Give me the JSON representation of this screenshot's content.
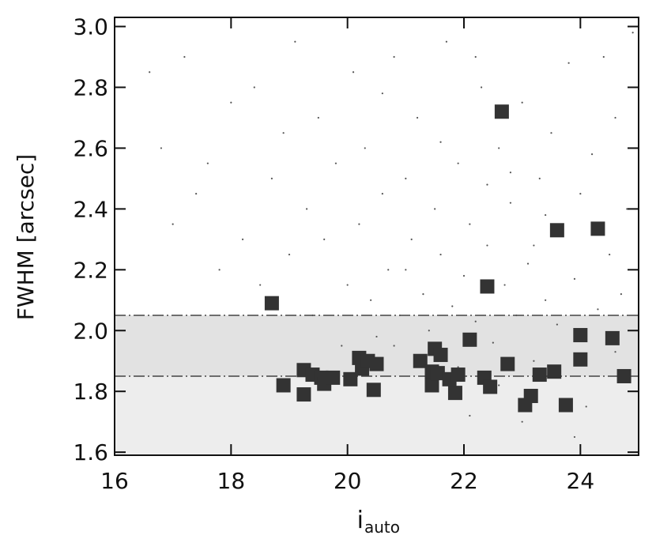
{
  "chart_data": {
    "type": "scatter",
    "y_label": "FWHM [arcsec]",
    "x_label": "i",
    "x_label_sub": "auto",
    "xlim": [
      16,
      25
    ],
    "ylim": [
      1.59,
      3.03
    ],
    "xticks": [
      16,
      18,
      20,
      22,
      24
    ],
    "yticks": [
      1.6,
      1.8,
      {
        "value": 2,
        "label": "2.0"
      },
      2.2,
      2.4,
      2.6,
      2.8,
      {
        "value": 3,
        "label": "3.0"
      }
    ],
    "bands": [
      {
        "to": 2.05,
        "color": "#ededed"
      },
      {
        "from": 1.85,
        "to": 2.05,
        "color": "#e2e2e2"
      }
    ],
    "hlines": [
      2.05,
      1.85
    ],
    "series": [
      {
        "marker": "dot",
        "color": "#555555",
        "x": [
          16.6,
          16.8,
          17.0,
          17.2,
          17.4,
          17.6,
          17.8,
          18.0,
          18.2,
          18.4,
          18.5,
          18.7,
          18.9,
          19.0,
          19.1,
          19.3,
          19.4,
          19.5,
          19.6,
          19.8,
          19.9,
          20.0,
          20.1,
          20.2,
          20.3,
          20.4,
          20.5,
          20.6,
          20.7,
          20.8,
          20.9,
          21.0,
          21.1,
          21.2,
          21.3,
          21.4,
          21.5,
          21.6,
          21.7,
          21.8,
          21.9,
          22.0,
          22.1,
          22.2,
          22.3,
          22.4,
          22.5,
          22.6,
          22.7,
          22.8,
          22.9,
          23.0,
          23.1,
          23.2,
          23.3,
          23.4,
          23.5,
          23.6,
          23.7,
          23.8,
          23.9,
          24.0,
          24.1,
          24.2,
          24.3,
          24.4,
          24.5,
          24.6,
          24.7,
          24.8,
          24.9,
          21.2,
          21.9,
          22.6,
          23.0,
          22.1,
          20.8,
          22.8,
          21.6,
          23.4,
          22.2,
          20.6,
          24.6,
          23.9,
          22.4,
          21.0,
          23.2
        ],
        "values": [
          2.85,
          2.6,
          2.35,
          2.9,
          2.45,
          2.55,
          2.2,
          2.75,
          2.3,
          2.8,
          2.15,
          2.5,
          2.65,
          2.25,
          2.95,
          2.4,
          2.05,
          2.7,
          2.3,
          2.55,
          1.95,
          2.15,
          2.85,
          2.35,
          2.6,
          2.1,
          1.98,
          2.45,
          2.2,
          2.9,
          2.05,
          2.5,
          2.3,
          2.7,
          2.12,
          2.0,
          2.4,
          2.25,
          2.95,
          2.08,
          2.55,
          2.18,
          2.35,
          2.03,
          2.8,
          2.28,
          1.96,
          2.6,
          2.15,
          2.42,
          2.05,
          2.75,
          2.22,
          1.9,
          2.5,
          2.1,
          2.65,
          2.02,
          2.32,
          2.88,
          2.17,
          2.45,
          1.75,
          2.58,
          2.07,
          2.9,
          2.25,
          2.7,
          2.12,
          2.4,
          2.98,
          1.92,
          1.88,
          1.82,
          1.7,
          1.72,
          1.95,
          2.52,
          2.62,
          2.38,
          2.9,
          2.78,
          1.93,
          1.65,
          2.48,
          2.2,
          2.28
        ]
      },
      {
        "marker": "square",
        "color": "#333333",
        "x": [
          18.7,
          22.65,
          23.6,
          24.3,
          22.4,
          18.9,
          19.25,
          19.25,
          19.4,
          19.55,
          19.6,
          19.75,
          20.05,
          20.2,
          20.25,
          20.35,
          20.5,
          20.45,
          21.25,
          21.45,
          21.45,
          21.5,
          21.6,
          21.55,
          21.75,
          21.85,
          21.9,
          22.1,
          22.35,
          22.45,
          22.75,
          23.05,
          23.15,
          23.3,
          23.55,
          23.75,
          24.0,
          24.0,
          24.55,
          24.75
        ],
        "values": [
          2.09,
          2.72,
          2.33,
          2.335,
          2.145,
          1.82,
          1.87,
          1.79,
          1.855,
          1.845,
          1.825,
          1.845,
          1.84,
          1.91,
          1.875,
          1.9,
          1.89,
          1.805,
          1.9,
          1.865,
          1.82,
          1.94,
          1.92,
          1.86,
          1.84,
          1.795,
          1.855,
          1.97,
          1.845,
          1.815,
          1.89,
          1.755,
          1.785,
          1.855,
          1.865,
          1.755,
          1.985,
          1.905,
          1.975,
          1.85
        ]
      }
    ]
  }
}
